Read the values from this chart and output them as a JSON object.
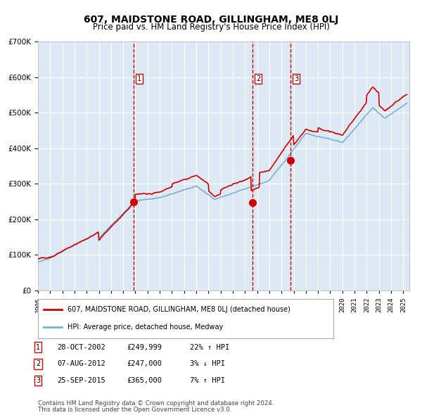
{
  "title": "607, MAIDSTONE ROAD, GILLINGHAM, ME8 0LJ",
  "subtitle": "Price paid vs. HM Land Registry's House Price Index (HPI)",
  "legend_line1": "607, MAIDSTONE ROAD, GILLINGHAM, ME8 0LJ (detached house)",
  "legend_line2": "HPI: Average price, detached house, Medway",
  "note1": "Contains HM Land Registry data © Crown copyright and database right 2024.",
  "note2": "This data is licensed under the Open Government Licence v3.0.",
  "sale_points": [
    {
      "num": 1,
      "date": "28-OCT-2002",
      "price": 249999,
      "x_year": 2002.83,
      "pct": "22%",
      "dir": "↑"
    },
    {
      "num": 2,
      "date": "07-AUG-2012",
      "price": 247000,
      "x_year": 2012.6,
      "pct": "3%",
      "dir": "↓"
    },
    {
      "num": 3,
      "date": "25-SEP-2015",
      "price": 365000,
      "x_year": 2015.73,
      "pct": "7%",
      "dir": "↑"
    }
  ],
  "background_color": "#dce9f5",
  "red_line_color": "#cc0000",
  "blue_line_color": "#7ab0d4",
  "grid_color": "#ffffff",
  "dashed_line_color": "#cc0000",
  "ylim": [
    0,
    700000
  ],
  "xlim_start": 1995,
  "xlim_end": 2025.5
}
